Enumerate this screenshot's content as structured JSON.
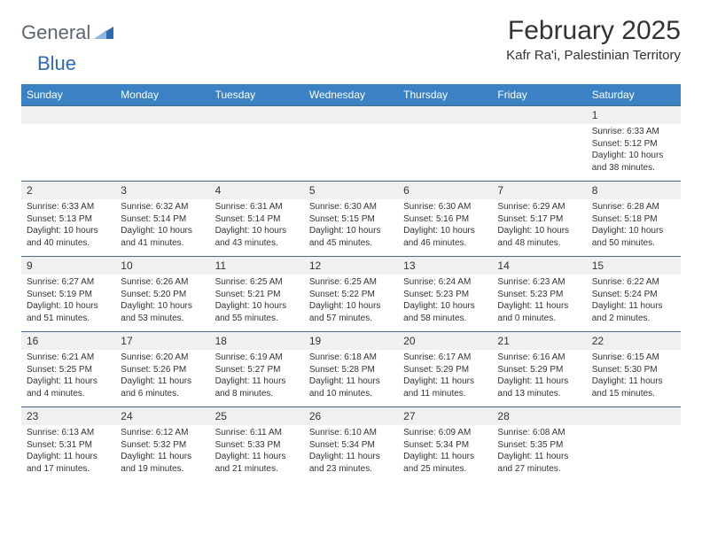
{
  "brand": {
    "word1": "General",
    "word2": "Blue"
  },
  "title": "February 2025",
  "subtitle": "Kafr Ra'i, Palestinian Territory",
  "header_bg": "#3b82c4",
  "header_fg": "#ffffff",
  "daynum_bg": "#f0f0f0",
  "week_border": "#4a6a8a",
  "text_color": "#333333",
  "day_names": [
    "Sunday",
    "Monday",
    "Tuesday",
    "Wednesday",
    "Thursday",
    "Friday",
    "Saturday"
  ],
  "weeks": [
    [
      {
        "n": "",
        "sunrise": "",
        "sunset": "",
        "daylight": ""
      },
      {
        "n": "",
        "sunrise": "",
        "sunset": "",
        "daylight": ""
      },
      {
        "n": "",
        "sunrise": "",
        "sunset": "",
        "daylight": ""
      },
      {
        "n": "",
        "sunrise": "",
        "sunset": "",
        "daylight": ""
      },
      {
        "n": "",
        "sunrise": "",
        "sunset": "",
        "daylight": ""
      },
      {
        "n": "",
        "sunrise": "",
        "sunset": "",
        "daylight": ""
      },
      {
        "n": "1",
        "sunrise": "Sunrise: 6:33 AM",
        "sunset": "Sunset: 5:12 PM",
        "daylight": "Daylight: 10 hours and 38 minutes."
      }
    ],
    [
      {
        "n": "2",
        "sunrise": "Sunrise: 6:33 AM",
        "sunset": "Sunset: 5:13 PM",
        "daylight": "Daylight: 10 hours and 40 minutes."
      },
      {
        "n": "3",
        "sunrise": "Sunrise: 6:32 AM",
        "sunset": "Sunset: 5:14 PM",
        "daylight": "Daylight: 10 hours and 41 minutes."
      },
      {
        "n": "4",
        "sunrise": "Sunrise: 6:31 AM",
        "sunset": "Sunset: 5:14 PM",
        "daylight": "Daylight: 10 hours and 43 minutes."
      },
      {
        "n": "5",
        "sunrise": "Sunrise: 6:30 AM",
        "sunset": "Sunset: 5:15 PM",
        "daylight": "Daylight: 10 hours and 45 minutes."
      },
      {
        "n": "6",
        "sunrise": "Sunrise: 6:30 AM",
        "sunset": "Sunset: 5:16 PM",
        "daylight": "Daylight: 10 hours and 46 minutes."
      },
      {
        "n": "7",
        "sunrise": "Sunrise: 6:29 AM",
        "sunset": "Sunset: 5:17 PM",
        "daylight": "Daylight: 10 hours and 48 minutes."
      },
      {
        "n": "8",
        "sunrise": "Sunrise: 6:28 AM",
        "sunset": "Sunset: 5:18 PM",
        "daylight": "Daylight: 10 hours and 50 minutes."
      }
    ],
    [
      {
        "n": "9",
        "sunrise": "Sunrise: 6:27 AM",
        "sunset": "Sunset: 5:19 PM",
        "daylight": "Daylight: 10 hours and 51 minutes."
      },
      {
        "n": "10",
        "sunrise": "Sunrise: 6:26 AM",
        "sunset": "Sunset: 5:20 PM",
        "daylight": "Daylight: 10 hours and 53 minutes."
      },
      {
        "n": "11",
        "sunrise": "Sunrise: 6:25 AM",
        "sunset": "Sunset: 5:21 PM",
        "daylight": "Daylight: 10 hours and 55 minutes."
      },
      {
        "n": "12",
        "sunrise": "Sunrise: 6:25 AM",
        "sunset": "Sunset: 5:22 PM",
        "daylight": "Daylight: 10 hours and 57 minutes."
      },
      {
        "n": "13",
        "sunrise": "Sunrise: 6:24 AM",
        "sunset": "Sunset: 5:23 PM",
        "daylight": "Daylight: 10 hours and 58 minutes."
      },
      {
        "n": "14",
        "sunrise": "Sunrise: 6:23 AM",
        "sunset": "Sunset: 5:23 PM",
        "daylight": "Daylight: 11 hours and 0 minutes."
      },
      {
        "n": "15",
        "sunrise": "Sunrise: 6:22 AM",
        "sunset": "Sunset: 5:24 PM",
        "daylight": "Daylight: 11 hours and 2 minutes."
      }
    ],
    [
      {
        "n": "16",
        "sunrise": "Sunrise: 6:21 AM",
        "sunset": "Sunset: 5:25 PM",
        "daylight": "Daylight: 11 hours and 4 minutes."
      },
      {
        "n": "17",
        "sunrise": "Sunrise: 6:20 AM",
        "sunset": "Sunset: 5:26 PM",
        "daylight": "Daylight: 11 hours and 6 minutes."
      },
      {
        "n": "18",
        "sunrise": "Sunrise: 6:19 AM",
        "sunset": "Sunset: 5:27 PM",
        "daylight": "Daylight: 11 hours and 8 minutes."
      },
      {
        "n": "19",
        "sunrise": "Sunrise: 6:18 AM",
        "sunset": "Sunset: 5:28 PM",
        "daylight": "Daylight: 11 hours and 10 minutes."
      },
      {
        "n": "20",
        "sunrise": "Sunrise: 6:17 AM",
        "sunset": "Sunset: 5:29 PM",
        "daylight": "Daylight: 11 hours and 11 minutes."
      },
      {
        "n": "21",
        "sunrise": "Sunrise: 6:16 AM",
        "sunset": "Sunset: 5:29 PM",
        "daylight": "Daylight: 11 hours and 13 minutes."
      },
      {
        "n": "22",
        "sunrise": "Sunrise: 6:15 AM",
        "sunset": "Sunset: 5:30 PM",
        "daylight": "Daylight: 11 hours and 15 minutes."
      }
    ],
    [
      {
        "n": "23",
        "sunrise": "Sunrise: 6:13 AM",
        "sunset": "Sunset: 5:31 PM",
        "daylight": "Daylight: 11 hours and 17 minutes."
      },
      {
        "n": "24",
        "sunrise": "Sunrise: 6:12 AM",
        "sunset": "Sunset: 5:32 PM",
        "daylight": "Daylight: 11 hours and 19 minutes."
      },
      {
        "n": "25",
        "sunrise": "Sunrise: 6:11 AM",
        "sunset": "Sunset: 5:33 PM",
        "daylight": "Daylight: 11 hours and 21 minutes."
      },
      {
        "n": "26",
        "sunrise": "Sunrise: 6:10 AM",
        "sunset": "Sunset: 5:34 PM",
        "daylight": "Daylight: 11 hours and 23 minutes."
      },
      {
        "n": "27",
        "sunrise": "Sunrise: 6:09 AM",
        "sunset": "Sunset: 5:34 PM",
        "daylight": "Daylight: 11 hours and 25 minutes."
      },
      {
        "n": "28",
        "sunrise": "Sunrise: 6:08 AM",
        "sunset": "Sunset: 5:35 PM",
        "daylight": "Daylight: 11 hours and 27 minutes."
      },
      {
        "n": "",
        "sunrise": "",
        "sunset": "",
        "daylight": ""
      }
    ]
  ]
}
